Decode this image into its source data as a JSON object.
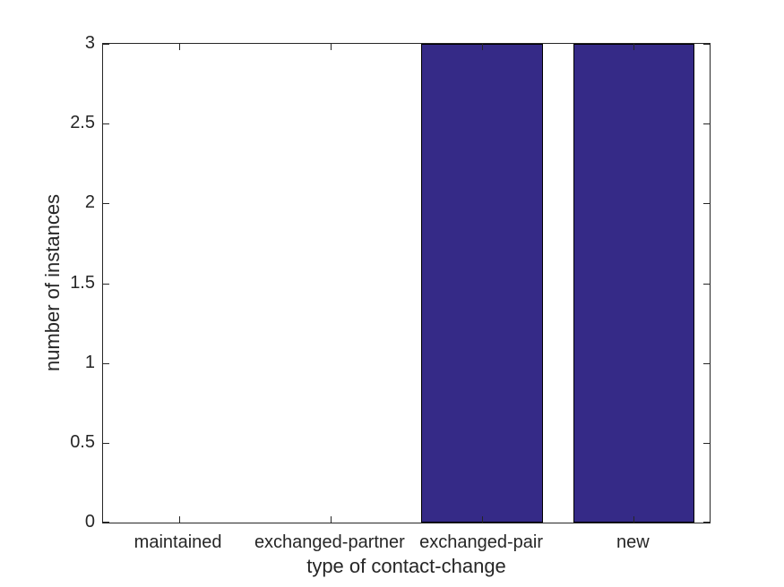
{
  "chart_data": {
    "type": "bar",
    "title": "",
    "categories": [
      "maintained",
      "exchanged-partner",
      "exchanged-pair",
      "new"
    ],
    "values": [
      0,
      0,
      3,
      3
    ],
    "xlabel": "type of contact-change",
    "ylabel": "number of instances",
    "ylim": [
      0,
      3
    ],
    "yticks": [
      0,
      0.5,
      1,
      1.5,
      2,
      2.5,
      3
    ],
    "ytick_labels": [
      "0",
      "0.5",
      "1",
      "1.5",
      "2",
      "2.5",
      "3"
    ],
    "bar_width_fraction": 0.8,
    "grid": false,
    "legend": null,
    "colors": {
      "bar_fill": "#352A87",
      "bar_edge": "#000000",
      "axis": "#262626",
      "text": "#262626",
      "background": "#FFFFFF"
    }
  }
}
